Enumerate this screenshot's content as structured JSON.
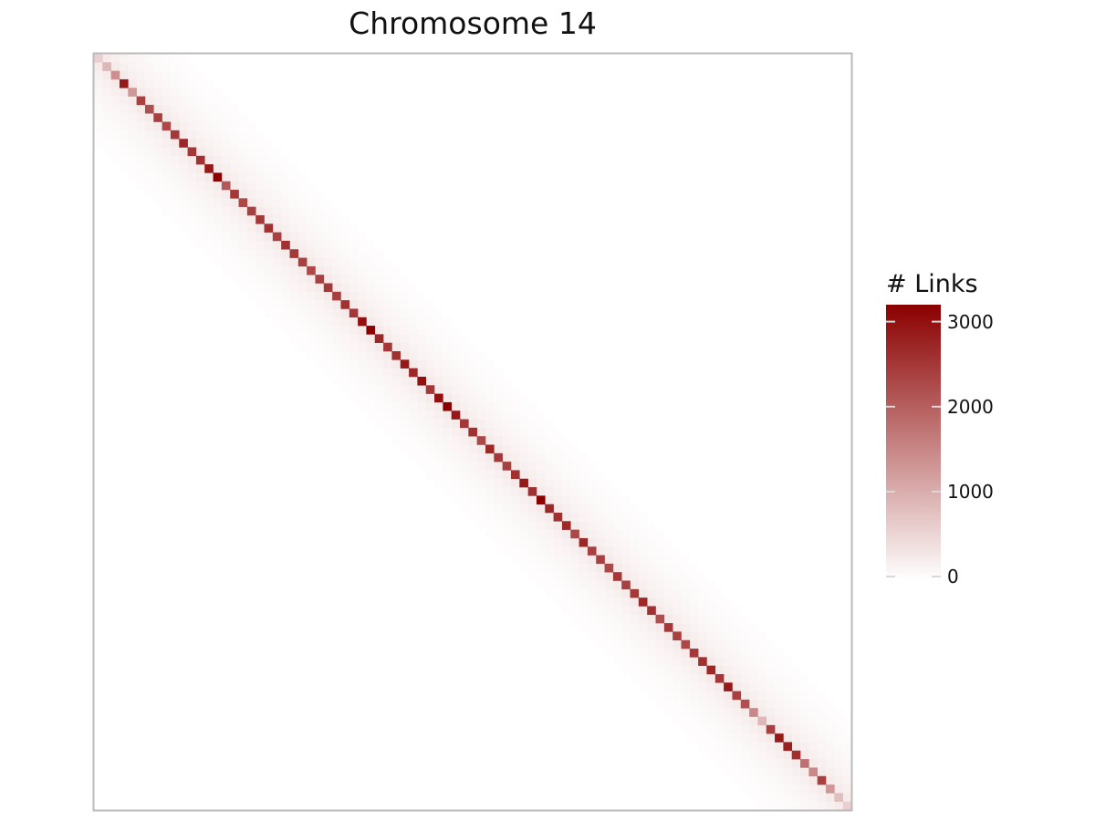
{
  "chart_data": {
    "type": "heatmap",
    "title": "Chromosome 14",
    "xlabel": "",
    "ylabel": "",
    "n_bins": 89,
    "diagonal_values": [
      600,
      900,
      1400,
      2900,
      1300,
      2400,
      2200,
      2400,
      2300,
      2500,
      2700,
      2500,
      2600,
      2900,
      3300,
      2100,
      2500,
      2300,
      2400,
      2500,
      2600,
      2400,
      2600,
      2500,
      2400,
      2300,
      2400,
      2500,
      2400,
      2600,
      2500,
      3000,
      3400,
      2700,
      2500,
      2600,
      2900,
      2700,
      3000,
      2500,
      3000,
      3300,
      2900,
      2500,
      2600,
      2300,
      2700,
      2500,
      2400,
      2600,
      2900,
      2600,
      3300,
      2700,
      2600,
      2700,
      2300,
      2700,
      2400,
      2400,
      2300,
      2500,
      2400,
      2500,
      2700,
      2600,
      2200,
      2500,
      2400,
      2300,
      2500,
      2600,
      2700,
      2500,
      2900,
      2400,
      2200,
      1500,
      900,
      2400,
      2900,
      2800,
      2600,
      1800,
      1500,
      2400,
      1300,
      800,
      600
    ],
    "off_diagonal_values": [
      250,
      200,
      150,
      120,
      100,
      80,
      60,
      50,
      40,
      30
    ],
    "legend": {
      "title": "# Links",
      "ticks": [
        0,
        1000,
        2000,
        3000
      ],
      "min": 0,
      "max": 3200,
      "position": "right"
    },
    "colors": {
      "low": "#ffffff",
      "high": "#8b0000",
      "frame": "#bbbbbb"
    }
  }
}
